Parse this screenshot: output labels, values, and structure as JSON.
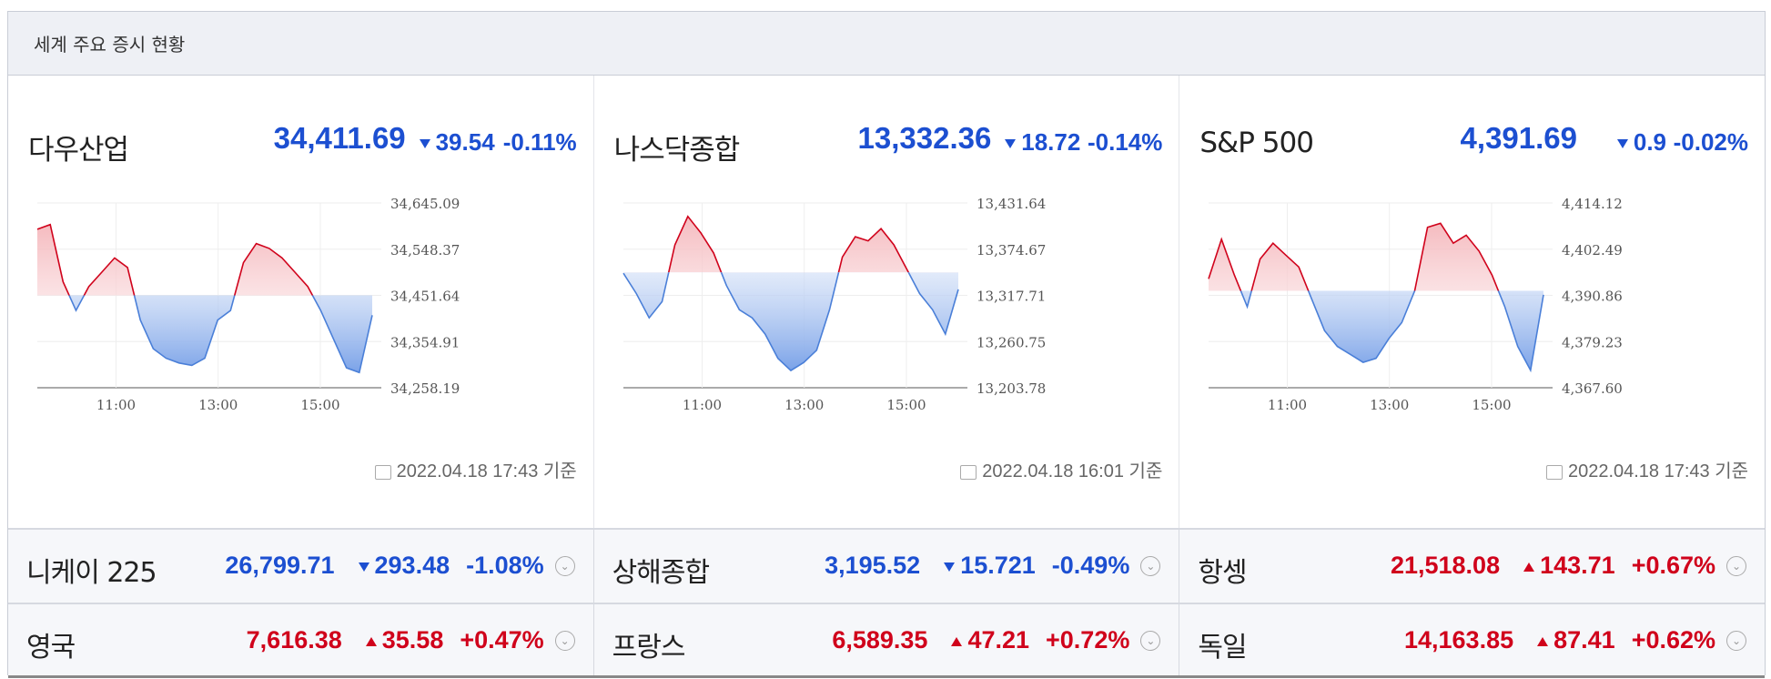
{
  "header": {
    "title": "세계 주요 증시 현황"
  },
  "colors": {
    "up": "#d0021b",
    "down": "#1c4fd1",
    "up_fill": "#f4b3b8",
    "down_fill": "#7aa2e8"
  },
  "panels": [
    {
      "name": "다우산업",
      "value": "34,411.69",
      "change": "39.54",
      "pct": "-0.11%",
      "direction": "down",
      "timestamp": "2022.04.18 17:43 기준"
    },
    {
      "name": "나스닥종합",
      "value": "13,332.36",
      "change": "18.72",
      "pct": "-0.14%",
      "direction": "down",
      "timestamp": "2022.04.18 16:01 기준"
    },
    {
      "name": "S&P 500",
      "value": "4,391.69",
      "change": "0.9",
      "pct": "-0.02%",
      "direction": "down",
      "timestamp": "2022.04.18 17:43 기준"
    }
  ],
  "rows": [
    [
      {
        "name": "니케이 225",
        "value": "26,799.71",
        "change": "293.48",
        "pct": "-1.08%",
        "direction": "down"
      },
      {
        "name": "상해종합",
        "value": "3,195.52",
        "change": "15.721",
        "pct": "-0.49%",
        "direction": "down"
      },
      {
        "name": "항셍",
        "value": "21,518.08",
        "change": "143.71",
        "pct": "+0.67%",
        "direction": "up"
      }
    ],
    [
      {
        "name": "영국",
        "value": "7,616.38",
        "change": "35.58",
        "pct": "+0.47%",
        "direction": "up"
      },
      {
        "name": "프랑스",
        "value": "6,589.35",
        "change": "47.21",
        "pct": "+0.72%",
        "direction": "up"
      },
      {
        "name": "독일",
        "value": "14,163.85",
        "change": "87.41",
        "pct": "+0.62%",
        "direction": "up"
      }
    ]
  ],
  "chart_data": [
    {
      "type": "area",
      "ylim": [
        34258.19,
        34645.09
      ],
      "y_ticks": [
        "34,645.09",
        "34,548.37",
        "34,451.64",
        "34,354.91",
        "34,258.19"
      ],
      "x_ticks": [
        "11:00",
        "13:00",
        "15:00"
      ],
      "baseline": 34451.64,
      "x": [
        "09:30",
        "09:45",
        "10:00",
        "10:15",
        "10:30",
        "10:45",
        "11:00",
        "11:15",
        "11:30",
        "11:45",
        "12:00",
        "12:15",
        "12:30",
        "12:45",
        "13:00",
        "13:15",
        "13:30",
        "13:45",
        "14:00",
        "14:15",
        "14:30",
        "14:45",
        "15:00",
        "15:15",
        "15:30",
        "15:45",
        "16:00"
      ],
      "values": [
        34590,
        34600,
        34480,
        34420,
        34470,
        34500,
        34530,
        34510,
        34400,
        34340,
        34320,
        34310,
        34305,
        34320,
        34400,
        34420,
        34520,
        34560,
        34550,
        34530,
        34500,
        34470,
        34420,
        34360,
        34300,
        34290,
        34410
      ]
    },
    {
      "type": "area",
      "ylim": [
        13203.78,
        13431.64
      ],
      "y_ticks": [
        "13,431.64",
        "13,374.67",
        "13,317.71",
        "13,260.75",
        "13,203.78"
      ],
      "x_ticks": [
        "11:00",
        "13:00",
        "15:00"
      ],
      "baseline": 13346.0,
      "x": [
        "09:30",
        "09:45",
        "10:00",
        "10:15",
        "10:30",
        "10:45",
        "11:00",
        "11:15",
        "11:30",
        "11:45",
        "12:00",
        "12:15",
        "12:30",
        "12:45",
        "13:00",
        "13:15",
        "13:30",
        "13:45",
        "14:00",
        "14:15",
        "14:30",
        "14:45",
        "15:00",
        "15:15",
        "15:30",
        "15:45",
        "16:00"
      ],
      "values": [
        13345,
        13320,
        13290,
        13310,
        13380,
        13415,
        13395,
        13370,
        13330,
        13300,
        13290,
        13270,
        13240,
        13225,
        13235,
        13250,
        13300,
        13365,
        13390,
        13385,
        13400,
        13380,
        13350,
        13320,
        13300,
        13270,
        13325
      ]
    },
    {
      "type": "area",
      "ylim": [
        4367.6,
        4414.12
      ],
      "y_ticks": [
        "4,414.12",
        "4,402.49",
        "4,390.86",
        "4,379.23",
        "4,367.60"
      ],
      "x_ticks": [
        "11:00",
        "13:00",
        "15:00"
      ],
      "baseline": 4392.0,
      "x": [
        "09:30",
        "09:45",
        "10:00",
        "10:15",
        "10:30",
        "10:45",
        "11:00",
        "11:15",
        "11:30",
        "11:45",
        "12:00",
        "12:15",
        "12:30",
        "12:45",
        "13:00",
        "13:15",
        "13:30",
        "13:45",
        "14:00",
        "14:15",
        "14:30",
        "14:45",
        "15:00",
        "15:15",
        "15:30",
        "15:45",
        "16:00"
      ],
      "values": [
        4395,
        4405,
        4396,
        4388,
        4400,
        4404,
        4401,
        4398,
        4390,
        4382,
        4378,
        4376,
        4374,
        4375,
        4380,
        4384,
        4392,
        4408,
        4409,
        4404,
        4406,
        4402,
        4396,
        4388,
        4378,
        4372,
        4391
      ]
    }
  ]
}
